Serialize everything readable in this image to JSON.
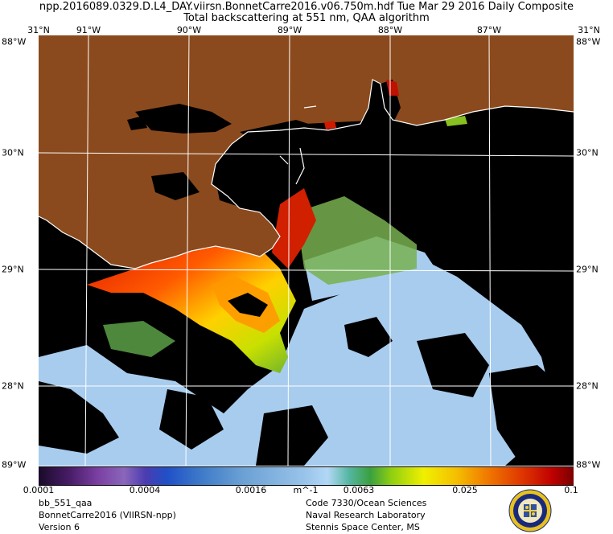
{
  "header": {
    "title_line1": "npp.2016089.0329.D.L4_DAY.viirsn.BonnetCarre2016.v06.750m.hdf     Tue Mar 29 2016 Daily Composite",
    "title_line2": "Total backscattering at 551 nm, QAA algorithm"
  },
  "map": {
    "top_lon_labels": [
      "31°N",
      "91°W",
      "90°W",
      "89°W",
      "88°W",
      "87°W",
      "31°N"
    ],
    "left_lat_labels": [
      "88°W",
      "30°N",
      "29°N",
      "28°N",
      "89°W"
    ],
    "right_lat_labels": [
      "88°W",
      "30°N",
      "29°N",
      "28°N",
      "88°W"
    ],
    "colors": {
      "land": "#8b4a1d",
      "no_data": "#000000",
      "coastline": "#ffffff",
      "graticule": "#ffffff"
    }
  },
  "colorbar": {
    "ticks": [
      "0.0001",
      "0.0004",
      "0.0016",
      "m^-1",
      "0.0063",
      "0.025",
      "0.1"
    ]
  },
  "footer": {
    "left": [
      "bb_551_qaa",
      "BonnetCarre2016 (VIIRSN-npp)",
      "Version 6"
    ],
    "right": [
      "Code 7330/Ocean Sciences",
      "Naval Research Laboratory",
      "Stennis Space Center, MS"
    ]
  }
}
